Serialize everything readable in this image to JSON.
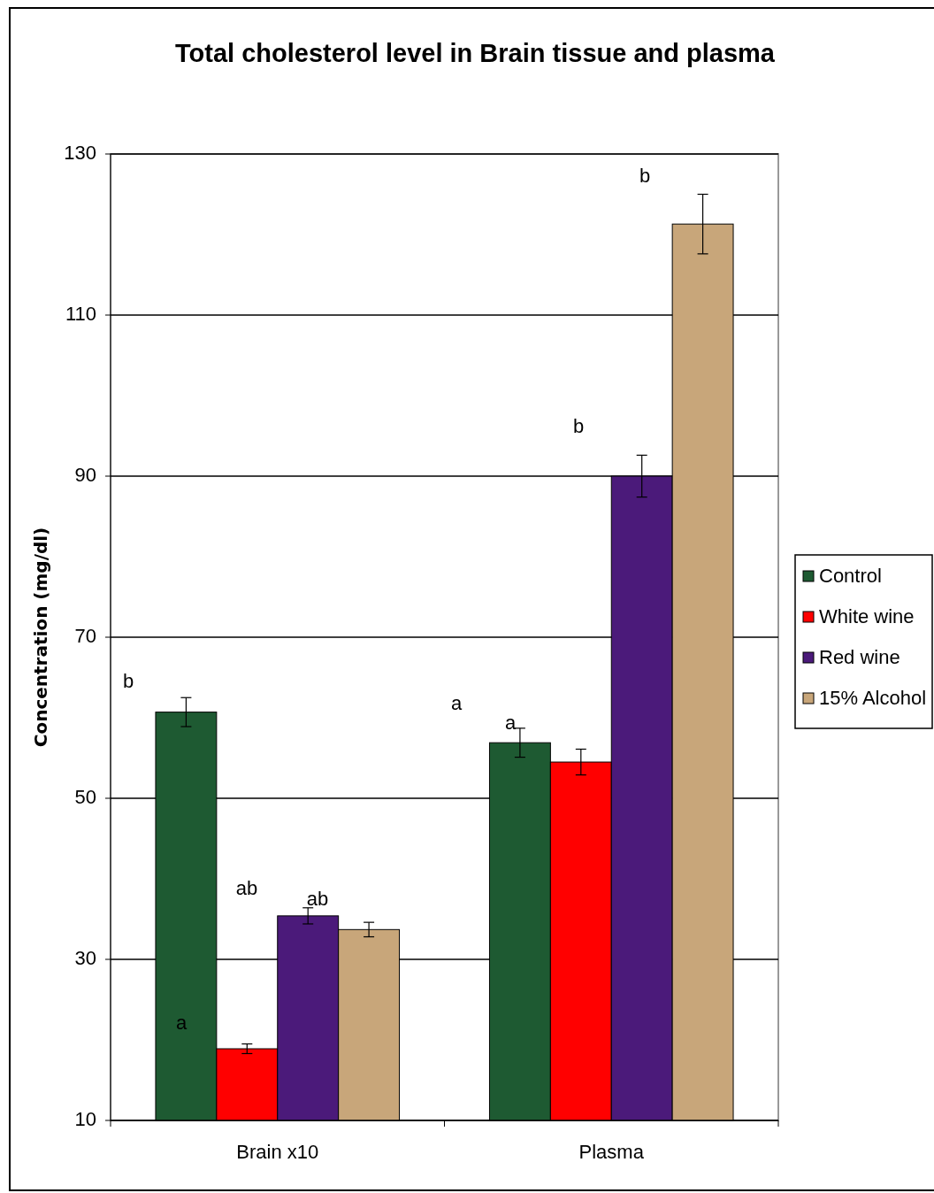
{
  "chart_data": {
    "type": "bar",
    "title": "Total cholesterol level in Brain tissue and plasma",
    "ylabel": "Concentration (mg/dl)",
    "categories": [
      "Brain x10",
      "Plasma"
    ],
    "series": [
      {
        "name": "Control",
        "color": "#1e5a32",
        "values": [
          60.7,
          56.9
        ],
        "errors": [
          1.8,
          1.8
        ]
      },
      {
        "name": "White wine",
        "color": "#ff0000",
        "values": [
          18.9,
          54.5
        ],
        "errors": [
          0.6,
          1.6
        ]
      },
      {
        "name": "Red wine",
        "color": "#4b1a7a",
        "values": [
          35.4,
          90
        ],
        "errors": [
          1.0,
          2.6
        ]
      },
      {
        "name": "15% Alcohol",
        "color": "#c8a67a",
        "values": [
          33.7,
          121.3
        ],
        "errors": [
          0.9,
          3.7
        ]
      }
    ],
    "ylim": [
      10,
      130
    ],
    "yticks": [
      10,
      30,
      50,
      70,
      90,
      110,
      130
    ],
    "grid": "y",
    "legend": "right",
    "annotations": [
      "b",
      "a",
      "ab",
      "ab",
      "a",
      "a",
      "b",
      "b"
    ]
  }
}
